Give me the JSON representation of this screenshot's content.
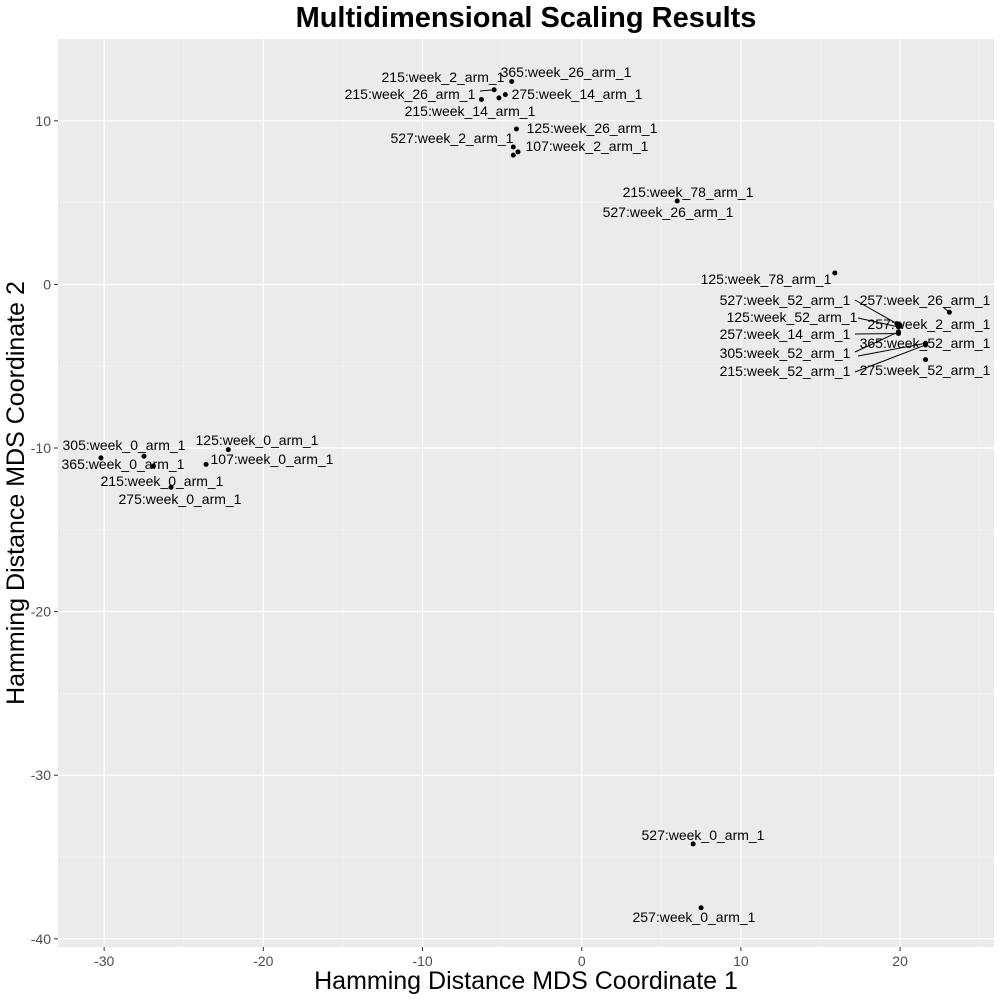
{
  "chart_data": {
    "type": "scatter",
    "title": "Multidimensional Scaling Results",
    "xlabel": "Hamming Distance MDS Coordinate 1",
    "ylabel": "Hamming Distance MDS Coordinate 2",
    "xlim": [
      -32.9,
      25.9
    ],
    "ylim": [
      -40.5,
      15.0
    ],
    "xticks": [
      -30,
      -20,
      -10,
      0,
      10,
      20
    ],
    "yticks": [
      -40,
      -30,
      -20,
      -10,
      0,
      10
    ],
    "xtick_labels": [
      "-30",
      "-20",
      "-10",
      "0",
      "10",
      "20"
    ],
    "ytick_labels": [
      "-40",
      "-30",
      "-20",
      "-10",
      "0",
      "10"
    ],
    "grid": true,
    "background": "#ebebeb",
    "point_color": "#000000",
    "points": [
      {
        "label": "215:week_2_arm_1",
        "x": -5.5,
        "y": 11.9
      },
      {
        "label": "365:week_26_arm_1",
        "x": -4.4,
        "y": 12.4
      },
      {
        "label": "215:week_26_arm_1",
        "x": -6.3,
        "y": 11.3
      },
      {
        "label": "275:week_14_arm_1",
        "x": -4.8,
        "y": 11.6
      },
      {
        "label": "215:week_14_arm_1",
        "x": -5.2,
        "y": 11.4
      },
      {
        "label": "527:week_2_arm_1",
        "x": -4.3,
        "y": 8.4
      },
      {
        "label": "125:week_26_arm_1",
        "x": -4.1,
        "y": 9.5
      },
      {
        "label": "107:week_2_arm_1",
        "x": -4.0,
        "y": 8.1
      },
      {
        "label": "215:week_78_arm_1",
        "x": 6.0,
        "y": 5.1
      },
      {
        "label": "527:week_26_arm_1",
        "x": -4.3,
        "y": 7.9
      },
      {
        "label": "125:week_78_arm_1",
        "x": 15.9,
        "y": 0.7
      },
      {
        "label": "527:week_52_arm_1",
        "x": 19.8,
        "y": -2.4
      },
      {
        "label": "257:week_26_arm_1",
        "x": 23.1,
        "y": -1.7
      },
      {
        "label": "125:week_52_arm_1",
        "x": 19.9,
        "y": -2.6
      },
      {
        "label": "257:week_2_arm_1",
        "x": 20.0,
        "y": -2.5
      },
      {
        "label": "257:week_14_arm_1",
        "x": 19.9,
        "y": -3.0
      },
      {
        "label": "365:week_52_arm_1",
        "x": 21.6,
        "y": -3.6
      },
      {
        "label": "305:week_52_arm_1",
        "x": 19.9,
        "y": -2.9
      },
      {
        "label": "215:week_52_arm_1",
        "x": 21.6,
        "y": -3.7
      },
      {
        "label": "275:week_52_arm_1",
        "x": 21.6,
        "y": -4.6
      },
      {
        "label": "305:week_0_arm_1",
        "x": -27.5,
        "y": -10.5
      },
      {
        "label": "125:week_0_arm_1",
        "x": -22.2,
        "y": -10.1
      },
      {
        "label": "365:week_0_arm_1",
        "x": -30.2,
        "y": -10.6
      },
      {
        "label": "107:week_0_arm_1",
        "x": -23.6,
        "y": -11.0
      },
      {
        "label": "215:week_0_arm_1",
        "x": -26.9,
        "y": -11.1
      },
      {
        "label": "275:week_0_arm_1",
        "x": -25.8,
        "y": -12.4
      },
      {
        "label": "527:week_0_arm_1",
        "x": 7.0,
        "y": -34.2
      },
      {
        "label": "257:week_0_arm_1",
        "x": 7.5,
        "y": -38.1
      }
    ]
  }
}
